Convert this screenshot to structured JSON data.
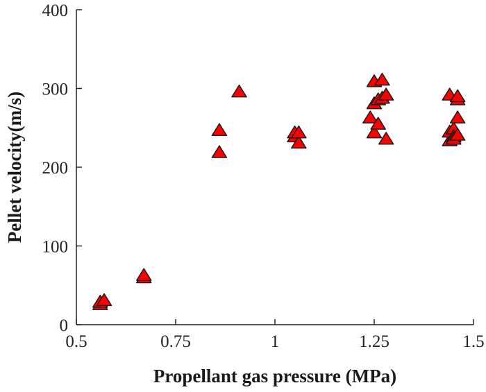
{
  "chart_data": {
    "type": "scatter",
    "title": "",
    "xlabel": "Propellant gas pressure (MPa)",
    "ylabel": "Pellet velocity(m/s)",
    "xlim": [
      0.5,
      1.5
    ],
    "ylim": [
      0,
      400
    ],
    "x_ticks": [
      0.5,
      0.75,
      1,
      1.25,
      1.5
    ],
    "x_tick_labels": [
      "0.5",
      "0.75",
      "1",
      "1.25",
      "1.5"
    ],
    "y_ticks": [
      0,
      100,
      200,
      300,
      400
    ],
    "y_tick_labels": [
      "0",
      "100",
      "200",
      "300",
      "400"
    ],
    "grid": false,
    "legend": "none",
    "marker": "triangle-up",
    "marker_color": "#ff0000",
    "series": [
      {
        "points": [
          {
            "x": 0.56,
            "y": 25
          },
          {
            "x": 0.56,
            "y": 28
          },
          {
            "x": 0.57,
            "y": 30
          },
          {
            "x": 0.67,
            "y": 59
          },
          {
            "x": 0.67,
            "y": 62
          },
          {
            "x": 0.86,
            "y": 218
          },
          {
            "x": 0.86,
            "y": 246
          },
          {
            "x": 0.91,
            "y": 295
          },
          {
            "x": 1.05,
            "y": 238
          },
          {
            "x": 1.05,
            "y": 243
          },
          {
            "x": 1.06,
            "y": 230
          },
          {
            "x": 1.06,
            "y": 243
          },
          {
            "x": 1.24,
            "y": 262
          },
          {
            "x": 1.25,
            "y": 243
          },
          {
            "x": 1.25,
            "y": 280
          },
          {
            "x": 1.25,
            "y": 308
          },
          {
            "x": 1.26,
            "y": 254
          },
          {
            "x": 1.26,
            "y": 285
          },
          {
            "x": 1.27,
            "y": 310
          },
          {
            "x": 1.27,
            "y": 287
          },
          {
            "x": 1.28,
            "y": 235
          },
          {
            "x": 1.28,
            "y": 291
          },
          {
            "x": 1.44,
            "y": 233
          },
          {
            "x": 1.44,
            "y": 244
          },
          {
            "x": 1.44,
            "y": 291
          },
          {
            "x": 1.45,
            "y": 248
          },
          {
            "x": 1.45,
            "y": 238
          },
          {
            "x": 1.45,
            "y": 235
          },
          {
            "x": 1.46,
            "y": 262
          },
          {
            "x": 1.46,
            "y": 240
          },
          {
            "x": 1.46,
            "y": 285
          },
          {
            "x": 1.46,
            "y": 289
          }
        ]
      }
    ]
  }
}
